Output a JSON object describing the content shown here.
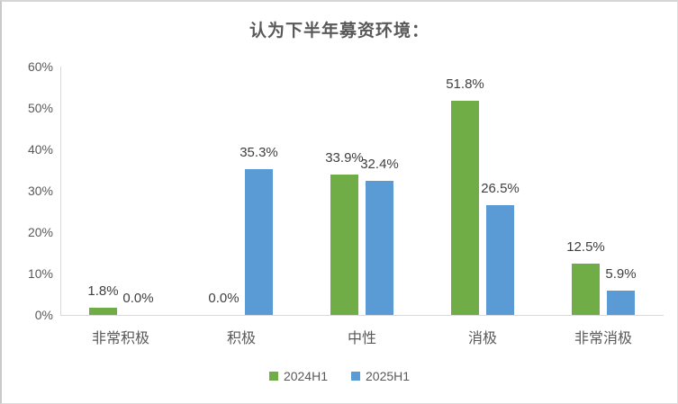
{
  "title": "认为下半年募资环境：",
  "chart_data": {
    "type": "bar",
    "title": "认为下半年募资环境：",
    "categories": [
      "非常积极",
      "积极",
      "中性",
      "消极",
      "非常消极"
    ],
    "series": [
      {
        "name": "2024H1",
        "color": "#70AD47",
        "values": [
          1.8,
          0.0,
          33.9,
          51.8,
          12.5
        ],
        "labels": [
          "1.8%",
          "0.0%",
          "33.9%",
          "51.8%",
          "12.5%"
        ]
      },
      {
        "name": "2025H1",
        "color": "#5B9BD5",
        "values": [
          0.0,
          35.3,
          32.4,
          26.5,
          5.9
        ],
        "labels": [
          "0.0%",
          "35.3%",
          "32.4%",
          "26.5%",
          "5.9%"
        ]
      }
    ],
    "xlabel": "",
    "ylabel": "",
    "ylim": [
      0,
      60
    ],
    "ytick_step": 10,
    "yticks": [
      "0%",
      "10%",
      "20%",
      "30%",
      "40%",
      "50%",
      "60%"
    ],
    "grid": false,
    "legend_position": "bottom"
  },
  "legend": {
    "items": [
      {
        "label": "2024H1",
        "color": "#70AD47"
      },
      {
        "label": "2025H1",
        "color": "#5B9BD5"
      }
    ]
  }
}
